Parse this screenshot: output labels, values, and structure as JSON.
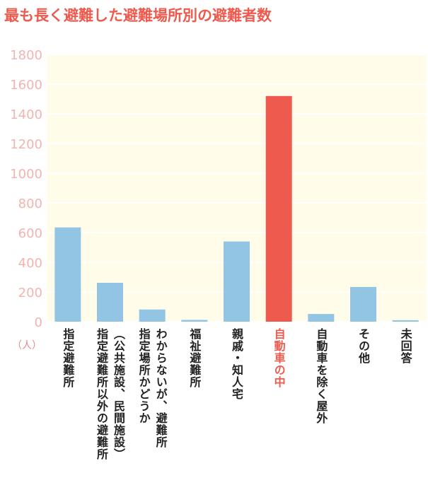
{
  "title": "最も長く避難した避難場所別の避難者数",
  "unit_label": "（人）",
  "colors": {
    "title": "#ef5a4e",
    "axis_text": "#f2b4af",
    "unit_text": "#e58a84",
    "plot_bg": "#fffdea",
    "grid": "#ffffff",
    "bar": "#92c5e3",
    "highlight_bar": "#ef5a4e",
    "label": "#222222",
    "highlight_label": "#ef5a4e"
  },
  "chart_data": {
    "type": "bar",
    "title": "最も長く避難した避難場所別の避難者数",
    "ylabel": "（人）",
    "xlabel": "",
    "ylim": [
      0,
      1800
    ],
    "yticks": [
      0,
      200,
      400,
      600,
      800,
      1000,
      1200,
      1400,
      1600,
      1800
    ],
    "grid": true,
    "categories": [
      "指定避難所",
      "指定避難所以外の避難所（公共施設、民間施設）",
      "指定場所かどうかわからないが、避難所",
      "福祉避難所",
      "親戚・知人宅",
      "自動車の中",
      "自動車を除く屋外",
      "その他",
      "未回答"
    ],
    "label_columns": [
      [
        "指定避難所"
      ],
      [
        "指定避難所以外の避難所",
        "（公共施設、民間施設）"
      ],
      [
        "指定場所かどうか",
        "わからないが、避難所"
      ],
      [
        "福祉避難所"
      ],
      [
        "親戚・知人宅"
      ],
      [
        "自動車の中"
      ],
      [
        "自動車を除く屋外"
      ],
      [
        "その他"
      ],
      [
        "未回答"
      ]
    ],
    "values": [
      635,
      262,
      82,
      12,
      540,
      1520,
      52,
      234,
      10
    ],
    "highlight_index": 5
  }
}
